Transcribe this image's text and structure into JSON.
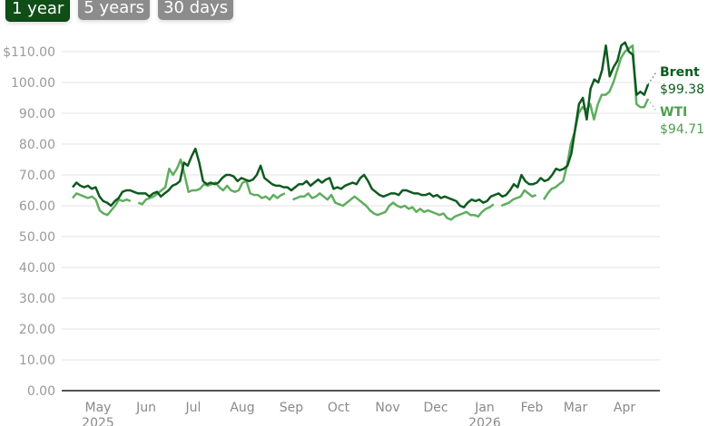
{
  "tabs": [
    {
      "label": "1 year",
      "active": true
    },
    {
      "label": "5 years",
      "active": false
    },
    {
      "label": "30 days",
      "active": false
    }
  ],
  "legend": {
    "brent": {
      "name": "Brent",
      "value": "$99.38",
      "color": "#0f5a1f"
    },
    "wti": {
      "name": "WTI",
      "value": "$94.71",
      "color": "#5fae5f"
    }
  },
  "chart_data": {
    "type": "line",
    "title": "",
    "xlabel": "",
    "ylabel": "",
    "ylim": [
      0,
      110
    ],
    "grid": true,
    "legend_position": "right-end-labels",
    "y_ticks": [
      "$110.00",
      "100.00",
      "90.00",
      "80.00",
      "70.00",
      "60.00",
      "50.00",
      "40.00",
      "30.00",
      "20.00",
      "10.00",
      "0.00"
    ],
    "x_ticks": [
      {
        "label": "May",
        "sub": "2025"
      },
      {
        "label": "Jun",
        "sub": ""
      },
      {
        "label": "Jul",
        "sub": ""
      },
      {
        "label": "Aug",
        "sub": ""
      },
      {
        "label": "Sep",
        "sub": ""
      },
      {
        "label": "Oct",
        "sub": ""
      },
      {
        "label": "Nov",
        "sub": ""
      },
      {
        "label": "Dec",
        "sub": ""
      },
      {
        "label": "Jan",
        "sub": "2026"
      },
      {
        "label": "Feb",
        "sub": ""
      },
      {
        "label": "Mar",
        "sub": ""
      },
      {
        "label": "Apr",
        "sub": ""
      }
    ],
    "series": [
      {
        "name": "Brent",
        "color": "#0f5a1f",
        "last_value": 99.38,
        "values": [
          66,
          67.5,
          66.5,
          66,
          66.5,
          65.5,
          66,
          63,
          61.5,
          61,
          60,
          61.5,
          62.5,
          64.5,
          65,
          65,
          64.5,
          64,
          64,
          64,
          63,
          64,
          64.5,
          63,
          64,
          65,
          66.5,
          67,
          68,
          74,
          73,
          76,
          78.5,
          74,
          68,
          67,
          67.5,
          67,
          67.5,
          69,
          70,
          70,
          69.5,
          68,
          69,
          68.5,
          68,
          68.5,
          70,
          73,
          69,
          68,
          67,
          66.5,
          66.5,
          66,
          66,
          65,
          66,
          67,
          67,
          68,
          66.5,
          67.5,
          68.5,
          67.5,
          68.5,
          69,
          65.5,
          66,
          65.5,
          66.5,
          67,
          67.5,
          67,
          69,
          70,
          68,
          65.5,
          64.5,
          63.5,
          63,
          63.5,
          64,
          64,
          63.5,
          65,
          65,
          64.5,
          64,
          64,
          63.5,
          63.5,
          64,
          63,
          63.5,
          62.5,
          63,
          62.5,
          62,
          61.5,
          60,
          59.5,
          61,
          62,
          61.5,
          62,
          61,
          61.5,
          63,
          63.5,
          64,
          63,
          63.5,
          65,
          67,
          66,
          70,
          68,
          67,
          67,
          67.5,
          69,
          68,
          68.5,
          70,
          72,
          71.5,
          72,
          73,
          77,
          85,
          93,
          95,
          88,
          98,
          101,
          100,
          104,
          112,
          102,
          105,
          107,
          112,
          113,
          110,
          109,
          96,
          97,
          96,
          99.38
        ]
      },
      {
        "name": "WTI",
        "color": "#5fae5f",
        "last_value": 94.71,
        "values": [
          62.5,
          64,
          63.5,
          63,
          62.5,
          63,
          62,
          58.5,
          57.5,
          57,
          58.5,
          60,
          62,
          61.5,
          62,
          61.5,
          null,
          61,
          60.5,
          62,
          62.5,
          63,
          64,
          65,
          66,
          72,
          70,
          72,
          75,
          70,
          64.5,
          65,
          65,
          65.5,
          67,
          66.5,
          67,
          67.5,
          66,
          65,
          66.5,
          65,
          64.5,
          65,
          67.5,
          68,
          64,
          63.5,
          63.5,
          62.5,
          63,
          62,
          63.5,
          62.5,
          63.5,
          64,
          null,
          62,
          62.5,
          63,
          63,
          64,
          62.5,
          63,
          64,
          63,
          62,
          63.5,
          61,
          60.5,
          60,
          61,
          62,
          63,
          62,
          61,
          60,
          58.5,
          57.5,
          57,
          57.5,
          58,
          60,
          61,
          60,
          59.5,
          60,
          59,
          59.5,
          58,
          59,
          58,
          58.5,
          58,
          57.5,
          57,
          57.5,
          56,
          55.5,
          56.5,
          57,
          57.5,
          58,
          57,
          57,
          56.5,
          58,
          59,
          59.5,
          60.5,
          null,
          60,
          60.5,
          61,
          62,
          62.5,
          63,
          65,
          64,
          63,
          63.5,
          null,
          62,
          64,
          65.5,
          66,
          67,
          68,
          73,
          80,
          84,
          90,
          92,
          91,
          93,
          88,
          93,
          96,
          96,
          97,
          100,
          104,
          108,
          110,
          111,
          112,
          93,
          92,
          92,
          94.71
        ]
      }
    ]
  }
}
